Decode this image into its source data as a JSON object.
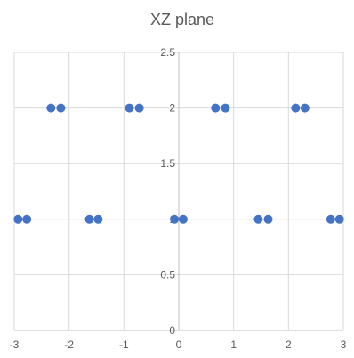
{
  "chart_data": {
    "type": "scatter",
    "title": "XZ plane",
    "xlabel": "",
    "ylabel": "",
    "xlim": [
      -3,
      3
    ],
    "ylim": [
      0,
      2.5
    ],
    "x_ticks": [
      -3,
      -2,
      -1,
      0,
      1,
      2,
      3
    ],
    "y_ticks": [
      0,
      0.5,
      1,
      1.5,
      2,
      2.5
    ],
    "y_tick_labels": [
      "0",
      "0.5",
      "1",
      "1.5",
      "2",
      "2.5"
    ],
    "grid": true,
    "legend": "none",
    "marker_color": "#4472C4",
    "series": [
      {
        "points": [
          {
            "x": -2.93,
            "y": 1
          },
          {
            "x": -2.77,
            "y": 1
          },
          {
            "x": -1.63,
            "y": 1
          },
          {
            "x": -1.47,
            "y": 1
          },
          {
            "x": -0.08,
            "y": 1
          },
          {
            "x": 0.08,
            "y": 1
          },
          {
            "x": 1.45,
            "y": 1
          },
          {
            "x": 1.63,
            "y": 1
          },
          {
            "x": 2.77,
            "y": 1
          },
          {
            "x": 2.93,
            "y": 1
          },
          {
            "x": -2.33,
            "y": 2
          },
          {
            "x": -2.15,
            "y": 2
          },
          {
            "x": -0.9,
            "y": 2
          },
          {
            "x": -0.72,
            "y": 2
          },
          {
            "x": 0.67,
            "y": 2
          },
          {
            "x": 0.85,
            "y": 2
          },
          {
            "x": 2.13,
            "y": 2
          },
          {
            "x": 2.3,
            "y": 2
          }
        ]
      }
    ]
  }
}
